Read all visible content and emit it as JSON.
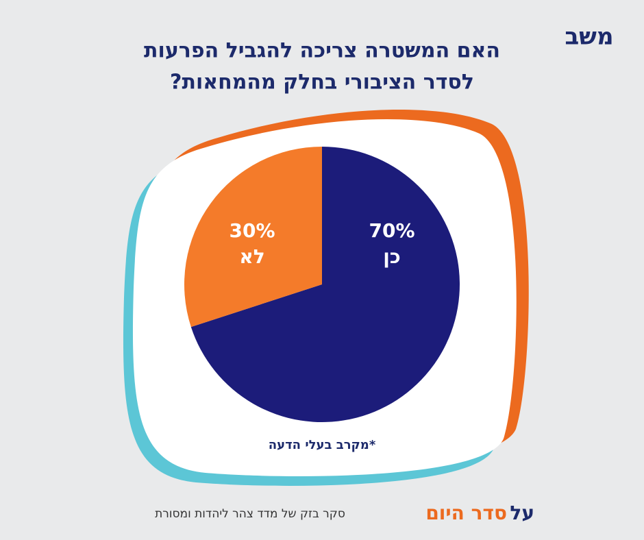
{
  "logo": "משב",
  "chart_data": {
    "type": "pie",
    "title": [
      "האם המשטרה צריכה להגביל הפרעות",
      "לסדר הציבורי בחלק מהמחאות?"
    ],
    "categories": [
      "כן",
      "לא"
    ],
    "values": [
      70,
      30
    ],
    "value_labels": [
      "70%",
      "30%"
    ],
    "colors": [
      "#1c1c7a",
      "#f47b2a"
    ],
    "note": "*מקרב בעלי הדעה"
  },
  "footer": {
    "brand_prefix": "על",
    "brand_name": "סדר היום",
    "source": "סקר בזק של מדד צהר ליהדות ומסורת"
  }
}
